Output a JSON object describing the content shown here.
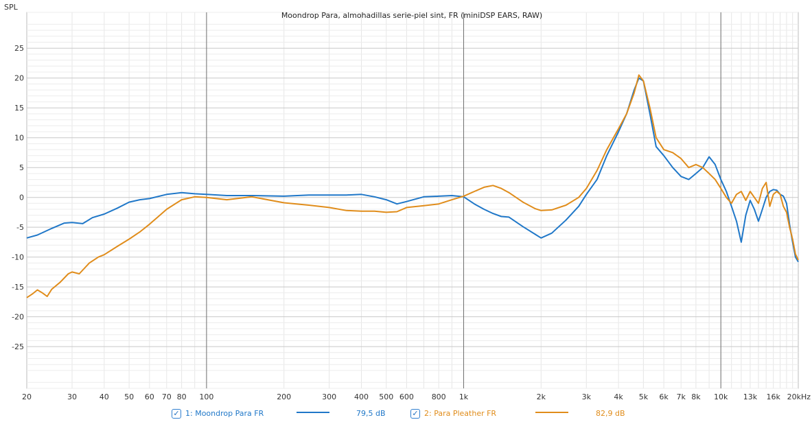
{
  "chart_data": {
    "type": "line",
    "title": "Moondrop Para, almohadillas serie-piel sint, FR (miniDSP EARS, RAW)",
    "ylabel": "SPL",
    "xlabel": "",
    "x_scale": "log",
    "xlim": [
      20,
      20000
    ],
    "ylim": [
      -32,
      31
    ],
    "y_ticks": [
      25,
      20,
      15,
      10,
      5,
      0,
      -5,
      -10,
      -15,
      -20,
      -25
    ],
    "y_tick_labels": [
      "25",
      "20",
      "15",
      "10",
      "5",
      "0",
      "-5",
      "-10",
      "-15",
      "-20",
      "-25"
    ],
    "x_ticks": [
      20,
      30,
      40,
      50,
      60,
      70,
      80,
      100,
      200,
      300,
      400,
      500,
      600,
      800,
      1000,
      2000,
      3000,
      4000,
      5000,
      6000,
      7000,
      8000,
      10000,
      13000,
      16000,
      20000
    ],
    "x_tick_labels": [
      "20",
      "30",
      "40",
      "50",
      "60",
      "70",
      "80",
      "100",
      "200",
      "300",
      "400",
      "500",
      "600",
      "800",
      "1k",
      "2k",
      "3k",
      "4k",
      "5k",
      "6k",
      "7k",
      "8k",
      "10k",
      "13k",
      "16k",
      "20kHz"
    ],
    "grid": true,
    "legend_position": "bottom",
    "series": [
      {
        "name": "1: Moondrop Para FR",
        "value_label": "79,5 dB",
        "color": "#1f77c8",
        "x": [
          20,
          22,
          25,
          28,
          30,
          33,
          36,
          40,
          45,
          50,
          55,
          60,
          70,
          80,
          90,
          100,
          120,
          150,
          200,
          250,
          300,
          350,
          400,
          450,
          500,
          550,
          600,
          700,
          800,
          900,
          1000,
          1100,
          1200,
          1300,
          1400,
          1500,
          1700,
          1900,
          2000,
          2200,
          2500,
          2800,
          3000,
          3300,
          3600,
          4000,
          4300,
          4600,
          4800,
          5000,
          5300,
          5600,
          6000,
          6500,
          7000,
          7500,
          8000,
          8500,
          9000,
          9500,
          10000,
          10500,
          11000,
          11500,
          12000,
          12500,
          13000,
          13500,
          14000,
          14500,
          15000,
          15500,
          16000,
          16500,
          17000,
          17500,
          18000,
          18500,
          19000,
          19500,
          20000
        ],
        "y": [
          -6.8,
          -6.3,
          -5.2,
          -4.3,
          -4.2,
          -4.4,
          -3.4,
          -2.8,
          -1.8,
          -0.8,
          -0.4,
          -0.2,
          0.5,
          0.8,
          0.6,
          0.5,
          0.3,
          0.3,
          0.2,
          0.4,
          0.4,
          0.4,
          0.5,
          0.1,
          -0.4,
          -1.1,
          -0.7,
          0.1,
          0.2,
          0.3,
          0.1,
          -1.1,
          -2.0,
          -2.7,
          -3.2,
          -3.3,
          -4.9,
          -6.2,
          -6.8,
          -6.0,
          -3.8,
          -1.5,
          0.5,
          3.0,
          7.0,
          11.0,
          14.0,
          18.0,
          20.0,
          19.5,
          14.0,
          8.5,
          7.0,
          5.0,
          3.5,
          3.0,
          4.0,
          5.0,
          6.8,
          5.5,
          3.0,
          1.0,
          -1.5,
          -4.0,
          -7.5,
          -3.0,
          -0.5,
          -2.0,
          -4.0,
          -2.0,
          0.0,
          1.0,
          1.3,
          1.2,
          0.5,
          0.2,
          -1.0,
          -4.5,
          -7.5,
          -10.0,
          -10.8
        ]
      },
      {
        "name": "2: Para Pleather FR",
        "value_label": "82,9 dB",
        "color": "#e08c1a",
        "x": [
          20,
          21,
          22,
          23,
          24,
          25,
          27,
          29,
          30,
          32,
          35,
          38,
          40,
          45,
          50,
          55,
          60,
          65,
          70,
          80,
          90,
          100,
          120,
          150,
          200,
          250,
          300,
          350,
          400,
          450,
          500,
          550,
          600,
          700,
          800,
          900,
          1000,
          1100,
          1200,
          1300,
          1400,
          1500,
          1700,
          1900,
          2000,
          2200,
          2500,
          2800,
          3000,
          3300,
          3600,
          4000,
          4300,
          4600,
          4800,
          5000,
          5300,
          5600,
          6000,
          6500,
          7000,
          7500,
          8000,
          8500,
          9000,
          9500,
          10000,
          10500,
          11000,
          11500,
          12000,
          12500,
          13000,
          13500,
          14000,
          14500,
          15000,
          15500,
          16000,
          16500,
          17000,
          17500,
          18000,
          18500,
          19000,
          19500,
          20000
        ],
        "y": [
          -16.8,
          -16.2,
          -15.5,
          -16.0,
          -16.6,
          -15.4,
          -14.2,
          -12.8,
          -12.5,
          -12.8,
          -11.0,
          -10.0,
          -9.6,
          -8.2,
          -7.0,
          -5.8,
          -4.5,
          -3.2,
          -2.0,
          -0.4,
          0.1,
          0.0,
          -0.4,
          0.1,
          -0.9,
          -1.3,
          -1.7,
          -2.2,
          -2.3,
          -2.3,
          -2.5,
          -2.4,
          -1.7,
          -1.4,
          -1.1,
          -0.4,
          0.2,
          1.0,
          1.7,
          2.0,
          1.5,
          0.8,
          -0.8,
          -1.9,
          -2.2,
          -2.1,
          -1.3,
          0.0,
          1.5,
          4.5,
          8.0,
          11.5,
          14.0,
          17.5,
          20.5,
          19.5,
          15.0,
          10.0,
          8.0,
          7.5,
          6.5,
          5.0,
          5.5,
          5.0,
          4.0,
          3.0,
          1.5,
          0.0,
          -1.0,
          0.5,
          1.0,
          -0.5,
          1.0,
          0.0,
          -1.0,
          1.5,
          2.5,
          -1.5,
          0.5,
          1.0,
          0.5,
          -1.5,
          -2.5,
          -5.0,
          -7.0,
          -9.5,
          -10.5
        ]
      }
    ]
  },
  "legend": {
    "items": [
      {
        "checked": "✓",
        "label": "1: Moondrop Para FR",
        "value": "79,5 dB"
      },
      {
        "checked": "✓",
        "label": "2: Para Pleather FR",
        "value": "82,9 dB"
      }
    ]
  }
}
